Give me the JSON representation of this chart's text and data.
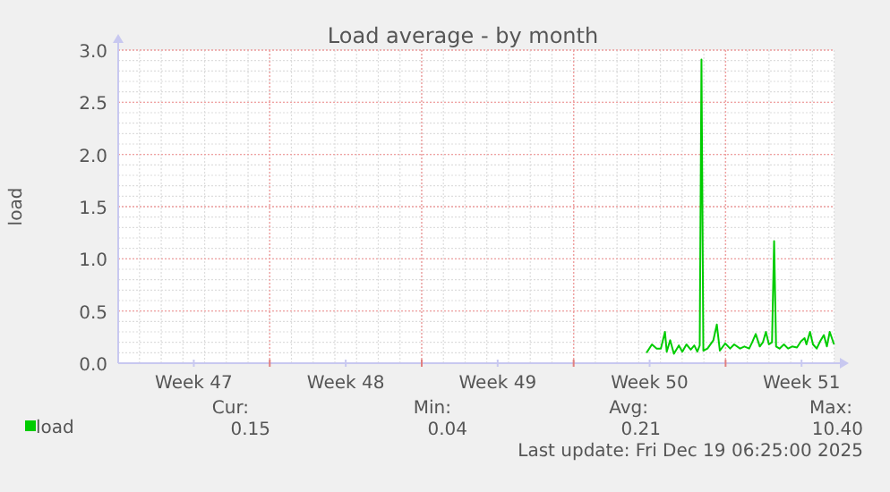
{
  "chart_data": {
    "type": "line",
    "title": "Load average - by month",
    "ylabel": "load",
    "xlim": [
      "2025-11-16T06:25",
      "2025-12-19T06:25"
    ],
    "xticks": [
      {
        "value": "2025-11-19T18:00",
        "label": "Week 47"
      },
      {
        "value": "2025-11-23T06:00",
        "label": null
      },
      {
        "value": "2025-11-26T18:00",
        "label": "Week 48"
      },
      {
        "value": "2025-11-30T06:00",
        "label": null
      },
      {
        "value": "2025-12-03T18:00",
        "label": "Week 49"
      },
      {
        "value": "2025-12-07T06:00",
        "label": null
      },
      {
        "value": "2025-12-10T18:00",
        "label": "Week 50"
      },
      {
        "value": "2025-12-14T06:00",
        "label": null
      },
      {
        "value": "2025-12-17T18:00",
        "label": "Week 51"
      }
    ],
    "ylim": [
      0,
      3
    ],
    "yticks": [
      {
        "value": 0,
        "label": "0.0"
      },
      {
        "value": 0.5,
        "label": "0.5"
      },
      {
        "value": 1,
        "label": "1.0"
      },
      {
        "value": 1.5,
        "label": "1.5"
      },
      {
        "value": 2,
        "label": "2.0"
      },
      {
        "value": 2.5,
        "label": "2.5"
      },
      {
        "value": 3,
        "label": "3.0"
      }
    ],
    "grid": true,
    "legend": "bottom left",
    "marker": "none",
    "line_style": "solid",
    "series": [
      {
        "name": "load",
        "color": "#00cc00",
        "x": [
          "2025-12-10T14:35",
          "2025-12-10T20:35",
          "2025-12-11T01:50",
          "2025-12-11T06:25",
          "2025-12-11T11:00",
          "2025-12-11T12:55",
          "2025-12-11T16:45",
          "2025-12-11T20:50",
          "2025-12-12T02:20",
          "2025-12-12T06:10",
          "2025-12-12T10:45",
          "2025-12-12T15:30",
          "2025-12-12T19:25",
          "2025-12-12T22:45",
          "2025-12-13T01:25",
          "2025-12-13T03:20",
          "2025-12-13T05:25",
          "2025-12-13T10:00",
          "2025-12-13T16:30",
          "2025-12-13T20:20",
          "2025-12-13T23:40",
          "2025-12-14T05:40",
          "2025-12-14T11:00",
          "2025-12-14T15:30",
          "2025-12-14T22:00",
          "2025-12-15T02:50",
          "2025-12-15T08:05",
          "2025-12-15T11:25",
          "2025-12-15T15:20",
          "2025-12-15T19:50",
          "2025-12-15T23:15",
          "2025-12-16T02:35",
          "2025-12-16T05:55",
          "2025-12-16T09:20",
          "2025-12-16T11:40",
          "2025-12-16T13:50",
          "2025-12-16T17:40",
          "2025-12-16T22:30",
          "2025-12-17T03:05",
          "2025-12-17T07:35",
          "2025-12-17T12:55",
          "2025-12-17T17:25",
          "2025-12-17T21:20",
          "2025-12-17T23:25",
          "2025-12-18T03:20",
          "2025-12-18T06:40",
          "2025-12-18T10:45",
          "2025-12-18T14:35",
          "2025-12-18T18:40",
          "2025-12-18T22:00",
          "2025-12-19T01:10",
          "2025-12-19T05:55"
        ],
        "values": [
          0.1,
          0.18,
          0.14,
          0.14,
          0.3,
          0.11,
          0.22,
          0.09,
          0.17,
          0.11,
          0.18,
          0.13,
          0.17,
          0.11,
          0.17,
          2.91,
          0.12,
          0.14,
          0.22,
          0.37,
          0.12,
          0.19,
          0.14,
          0.18,
          0.14,
          0.16,
          0.14,
          0.2,
          0.28,
          0.16,
          0.2,
          0.3,
          0.18,
          0.2,
          1.17,
          0.16,
          0.14,
          0.18,
          0.14,
          0.16,
          0.15,
          0.21,
          0.24,
          0.18,
          0.3,
          0.18,
          0.14,
          0.21,
          0.27,
          0.16,
          0.3,
          0.18
        ]
      }
    ],
    "annotations": [
      "Cur:",
      "0.15",
      "Min:",
      "0.04",
      "Avg:",
      "0.21",
      "Max:",
      "10.40",
      "Last update: Fri Dec 19 06:25:00 2025"
    ]
  }
}
